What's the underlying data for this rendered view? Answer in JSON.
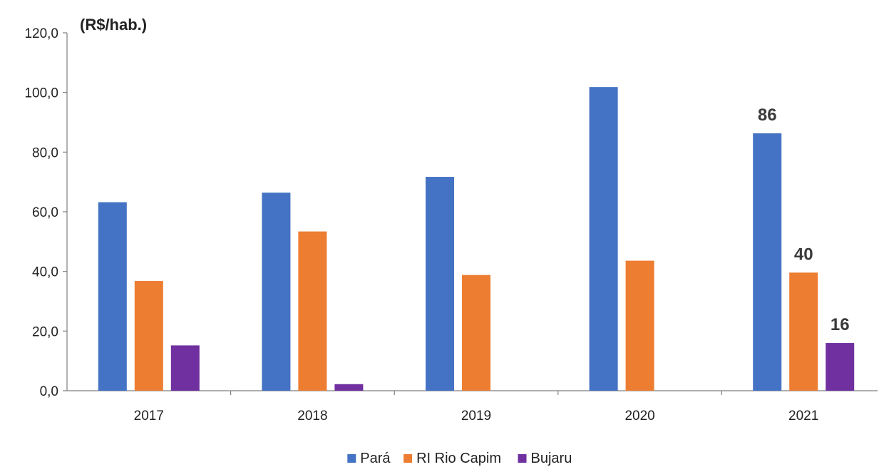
{
  "chart_data": {
    "type": "bar",
    "unit_label": "(R$/hab.)",
    "categories": [
      "2017",
      "2018",
      "2019",
      "2020",
      "2021"
    ],
    "series": [
      {
        "name": "Pará",
        "color": "#4472C4",
        "values": [
          63.2,
          66.4,
          71.7,
          101.8,
          86.3
        ]
      },
      {
        "name": "RI Rio Capim",
        "color": "#ED7D31",
        "values": [
          36.8,
          53.4,
          38.8,
          43.6,
          39.6
        ]
      },
      {
        "name": "Bujaru",
        "color": "#7030A0",
        "values": [
          15.2,
          2.2,
          0,
          0,
          16.0
        ]
      }
    ],
    "ylim": [
      0,
      120
    ],
    "yticks": [
      "0,0",
      "20,0",
      "40,0",
      "60,0",
      "80,0",
      "100,0",
      "120,0"
    ],
    "data_labels": [
      {
        "series": 0,
        "category": 4,
        "text": "86"
      },
      {
        "series": 1,
        "category": 4,
        "text": "40"
      },
      {
        "series": 2,
        "category": 4,
        "text": "16"
      }
    ],
    "grid": false,
    "legend_position": "bottom"
  }
}
